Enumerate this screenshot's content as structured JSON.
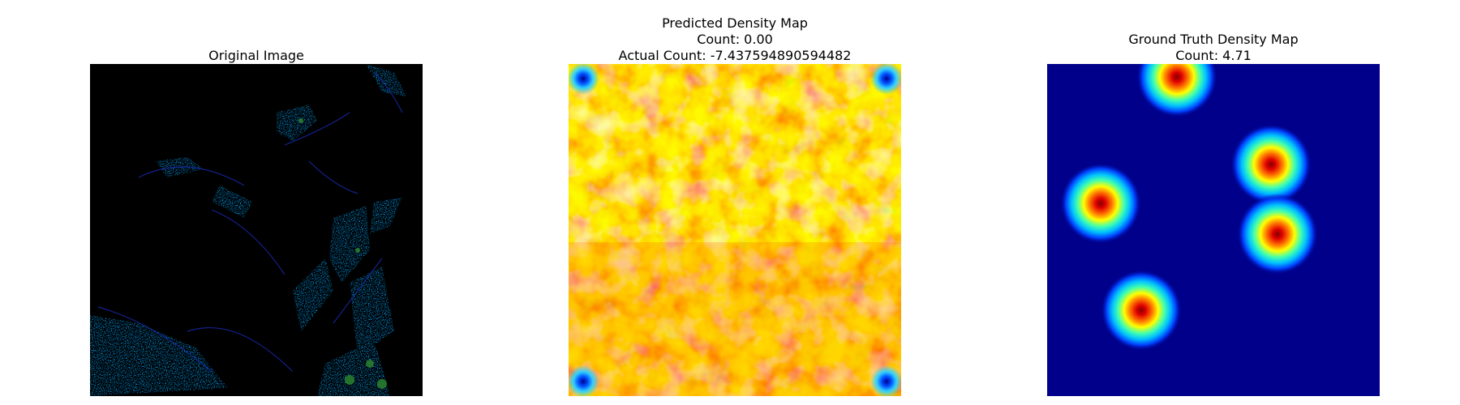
{
  "panels": [
    {
      "title_lines": [
        "Original Image"
      ]
    },
    {
      "title_lines": [
        "Predicted Density Map",
        "Count: 0.00",
        "Actual Count: -7.437594890594482"
      ]
    },
    {
      "title_lines": [
        "Ground Truth Density Map",
        "Count: 4.71"
      ]
    }
  ],
  "colors": {
    "background": "#ffffff",
    "original_bg": "#000000",
    "groundtruth_bg": "#00008b"
  }
}
